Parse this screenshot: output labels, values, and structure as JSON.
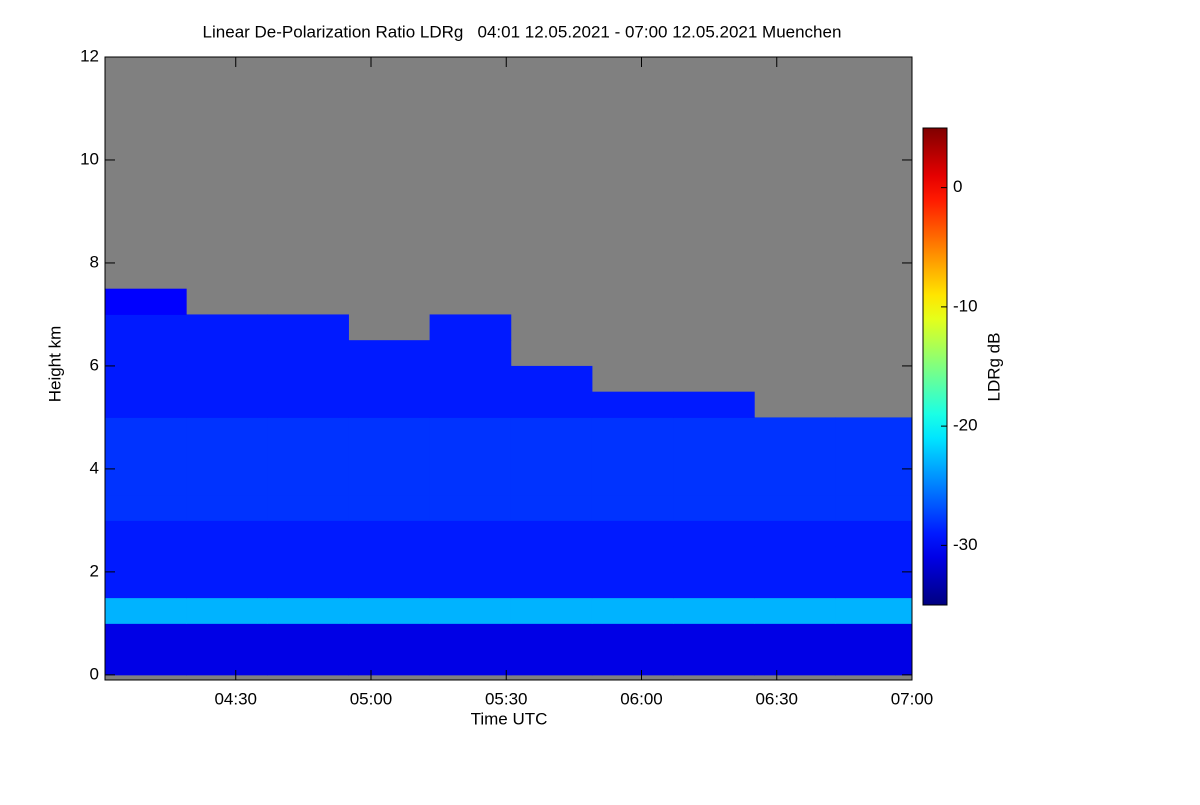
{
  "chart_data": {
    "type": "heatmap",
    "title": "Linear De-Polarization Ratio LDRg   04:01 12.05.2021 - 07:00 12.05.2021 Muenchen",
    "x_label": "Time UTC",
    "y_label": "Height km",
    "colorbar_label": "LDRg dB",
    "x": [
      250,
      268,
      286,
      304,
      322,
      340,
      358,
      376,
      394,
      412
    ],
    "y": [
      0.25,
      0.75,
      1.25,
      1.75,
      2.25,
      2.75,
      3.25,
      3.75,
      4.25,
      4.75,
      5.25,
      5.75,
      6.25,
      6.75,
      7.25,
      7.75,
      8.25,
      8.75,
      9.25,
      9.75,
      10.25,
      10.75,
      11.25,
      11.75
    ],
    "values": [
      [
        -31,
        -31,
        -31,
        -31,
        -31,
        -31,
        -31,
        -31,
        -31,
        -31
      ],
      [
        -31,
        -31,
        -31,
        -31,
        -31,
        -31,
        -31,
        -31,
        -31,
        -31
      ],
      [
        -23,
        -23,
        -23,
        -23,
        -23,
        -23,
        -23,
        -23,
        -23,
        -23
      ],
      [
        -29,
        -29,
        -29,
        -29,
        -29,
        -29,
        -29,
        -29,
        -29,
        -29
      ],
      [
        -29,
        -29,
        -29,
        -29,
        -29,
        -29,
        -29,
        -29,
        -29,
        -29
      ],
      [
        -29,
        -29,
        -29,
        -29,
        -29,
        -29,
        -29,
        -29,
        -29,
        -29
      ],
      [
        -28,
        -28,
        -28,
        -28,
        -28,
        -28,
        -28,
        -28,
        -28,
        -28
      ],
      [
        -28,
        -28,
        -28,
        -28,
        -28,
        -28,
        -28,
        -28,
        -28,
        -28
      ],
      [
        -28,
        -28,
        -28,
        -28,
        -28,
        -28,
        -28,
        -28,
        -28,
        -28
      ],
      [
        -28,
        -28,
        -28,
        -28,
        -28,
        -28,
        -28,
        -28,
        -28,
        -28
      ],
      [
        -29,
        -29,
        -29,
        -29,
        -29,
        -29,
        -29,
        -29,
        null,
        null
      ],
      [
        -29,
        -29,
        -29,
        -29,
        -29,
        -29,
        null,
        null,
        null,
        null
      ],
      [
        -29,
        -29,
        -29,
        -29,
        -29,
        null,
        null,
        null,
        null,
        null
      ],
      [
        -29,
        -29,
        -29,
        null,
        -29,
        null,
        null,
        null,
        null,
        null
      ],
      [
        -30,
        null,
        null,
        null,
        null,
        null,
        null,
        null,
        null,
        null
      ],
      [
        null,
        null,
        null,
        null,
        null,
        null,
        null,
        null,
        null,
        null
      ],
      [
        null,
        null,
        null,
        null,
        null,
        null,
        null,
        null,
        null,
        null
      ],
      [
        null,
        null,
        null,
        null,
        null,
        null,
        null,
        null,
        null,
        null
      ],
      [
        null,
        null,
        null,
        null,
        null,
        null,
        null,
        null,
        null,
        null
      ],
      [
        null,
        null,
        null,
        null,
        null,
        null,
        null,
        null,
        null,
        null
      ],
      [
        null,
        null,
        null,
        null,
        null,
        null,
        null,
        null,
        null,
        null
      ],
      [
        null,
        null,
        null,
        null,
        null,
        null,
        null,
        null,
        null,
        null
      ],
      [
        null,
        null,
        null,
        null,
        null,
        null,
        null,
        null,
        null,
        null
      ],
      [
        null,
        null,
        null,
        null,
        null,
        null,
        null,
        null,
        null,
        null
      ]
    ],
    "cell_width": 18,
    "cell_height": 0.5,
    "xlim": [
      241,
      420
    ],
    "xticks": [
      {
        "value": 270,
        "label": "04:30"
      },
      {
        "value": 300,
        "label": "05:00"
      },
      {
        "value": 330,
        "label": "05:30"
      },
      {
        "value": 360,
        "label": "06:00"
      },
      {
        "value": 390,
        "label": "06:30"
      },
      {
        "value": 420,
        "label": "07:00"
      }
    ],
    "ylim": [
      -0.1,
      12
    ],
    "yticks": [
      0,
      2,
      4,
      6,
      8,
      10,
      12
    ],
    "clim": [
      -35,
      5
    ],
    "cticks": [
      -30,
      -20,
      -10,
      0
    ],
    "colormap": "jet",
    "missing_color": "#808080"
  }
}
